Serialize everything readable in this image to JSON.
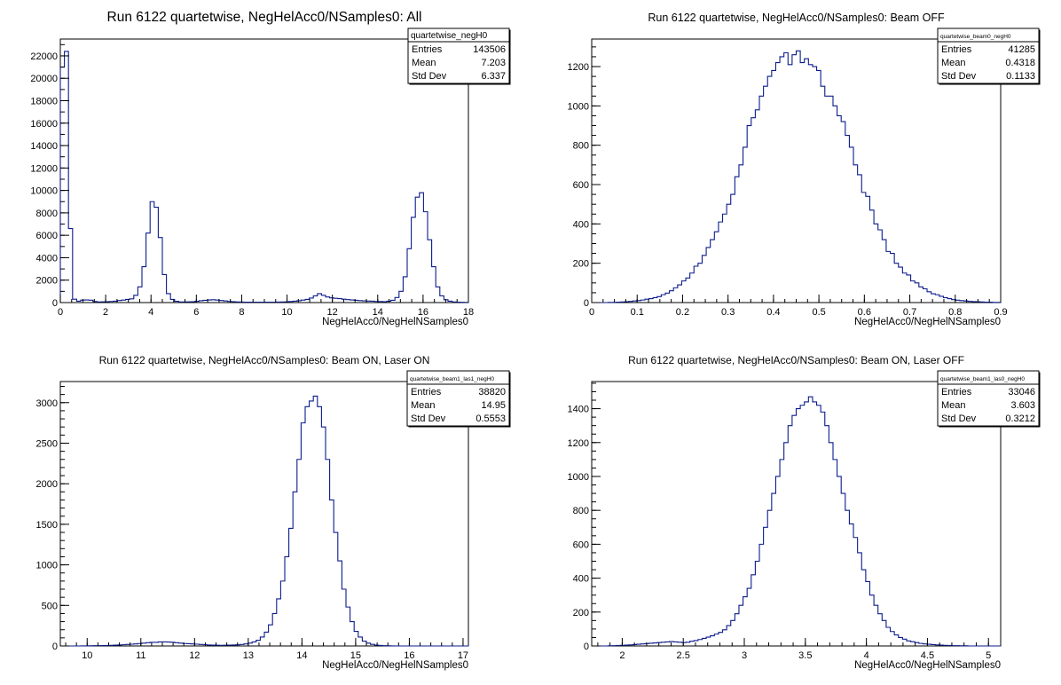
{
  "chart_data": [
    {
      "type": "histogram",
      "title": "Run 6122 quartetwise, NegHelAcc0/NSamples0: All",
      "xlabel": "NegHelAcc0/NegHelNSamples0",
      "xlim": [
        0,
        18
      ],
      "ylim": [
        0,
        23500
      ],
      "xticks": [
        0,
        2,
        4,
        6,
        8,
        10,
        12,
        14,
        16,
        18
      ],
      "yticks": [
        0,
        2000,
        4000,
        6000,
        8000,
        10000,
        12000,
        14000,
        16000,
        18000,
        20000,
        22000
      ],
      "stats": {
        "name": "quartetwise_negH0",
        "rows": [
          {
            "label": "Entries",
            "value": "143506"
          },
          {
            "label": "Mean",
            "value": "7.203"
          },
          {
            "label": "Std Dev",
            "value": "6.337"
          }
        ]
      },
      "bins": {
        "edges_start": 0,
        "bin_width": 0.18,
        "values": [
          21000,
          22400,
          6600,
          300,
          120,
          220,
          230,
          210,
          90,
          60,
          70,
          80,
          100,
          120,
          180,
          220,
          280,
          330,
          650,
          1400,
          3200,
          6200,
          9000,
          8500,
          5800,
          2500,
          800,
          280,
          110,
          60,
          60,
          70,
          80,
          110,
          160,
          200,
          230,
          250,
          220,
          180,
          140,
          100,
          80,
          60,
          50,
          40,
          40,
          40,
          40,
          40,
          40,
          40,
          40,
          50,
          60,
          70,
          90,
          120,
          160,
          220,
          280,
          400,
          600,
          800,
          650,
          500,
          420,
          380,
          350,
          300,
          260,
          230,
          200,
          170,
          150,
          130,
          120,
          100,
          90,
          80,
          120,
          200,
          450,
          1000,
          2300,
          4800,
          7600,
          9400,
          9800,
          8100,
          5600,
          3200,
          1400,
          600,
          250,
          120,
          60,
          40,
          30,
          20
        ]
      }
    },
    {
      "type": "histogram",
      "title": "Run 6122 quartetwise, NegHelAcc0/NSamples0: Beam OFF",
      "xlabel": "NegHelAcc0/NegHelNSamples0",
      "xlim": [
        0,
        0.9
      ],
      "ylim": [
        0,
        1340
      ],
      "xticks": [
        0,
        0.1,
        0.2,
        0.3,
        0.4,
        0.5,
        0.6,
        0.7,
        0.8,
        0.9
      ],
      "yticks": [
        0,
        200,
        400,
        600,
        800,
        1000,
        1200
      ],
      "stats": {
        "name": "quartetwise_beam0_negH0",
        "rows": [
          {
            "label": "Entries",
            "value": "41285"
          },
          {
            "label": "Mean",
            "value": "0.4318"
          },
          {
            "label": "Std Dev",
            "value": "0.1133"
          }
        ]
      },
      "bins": {
        "edges_start": 0,
        "bin_width": 0.009,
        "values": [
          0,
          0,
          0,
          0,
          1,
          1,
          2,
          3,
          4,
          6,
          8,
          10,
          13,
          17,
          20,
          25,
          30,
          40,
          48,
          60,
          75,
          90,
          110,
          125,
          150,
          185,
          200,
          240,
          280,
          320,
          360,
          410,
          450,
          500,
          550,
          640,
          700,
          790,
          900,
          940,
          980,
          1050,
          1100,
          1150,
          1180,
          1220,
          1250,
          1270,
          1210,
          1260,
          1280,
          1220,
          1240,
          1210,
          1200,
          1180,
          1100,
          1050,
          1050,
          1000,
          950,
          920,
          850,
          790,
          700,
          650,
          560,
          540,
          470,
          400,
          370,
          320,
          260,
          250,
          200,
          180,
          150,
          140,
          110,
          100,
          80,
          70,
          55,
          45,
          40,
          32,
          25,
          20,
          15,
          12,
          10,
          8,
          6,
          5,
          4,
          3,
          2,
          2,
          1,
          1
        ]
      }
    },
    {
      "type": "histogram",
      "title": "Run 6122 quartetwise, NegHelAcc0/NSamples0: Beam ON, Laser ON",
      "xlabel": "NegHelAcc0/NegHelNSamples0",
      "xlim": [
        9.5,
        17.1
      ],
      "ylim": [
        0,
        3260
      ],
      "xticks": [
        10,
        11,
        12,
        13,
        14,
        15,
        16,
        17
      ],
      "yticks": [
        0,
        500,
        1000,
        1500,
        2000,
        2500,
        3000
      ],
      "stats": {
        "name": "quartetwise_beam1_las1_negH0",
        "rows": [
          {
            "label": "Entries",
            "value": "38820"
          },
          {
            "label": "Mean",
            "value": "14.95"
          },
          {
            "label": "Std Dev",
            "value": "0.5553"
          }
        ]
      },
      "bins": {
        "edges_start": 9.5,
        "bin_width": 0.076,
        "values": [
          0,
          0,
          0,
          0,
          0,
          1,
          1,
          2,
          3,
          4,
          5,
          6,
          8,
          10,
          12,
          15,
          18,
          22,
          25,
          30,
          35,
          40,
          45,
          45,
          50,
          50,
          48,
          46,
          40,
          35,
          30,
          28,
          25,
          22,
          18,
          15,
          12,
          10,
          9,
          8,
          9,
          10,
          12,
          14,
          18,
          25,
          35,
          50,
          70,
          110,
          170,
          260,
          400,
          580,
          800,
          1100,
          1450,
          1900,
          2300,
          2750,
          2950,
          3020,
          3080,
          2950,
          2700,
          2300,
          1800,
          1400,
          1050,
          700,
          480,
          300,
          180,
          110,
          60,
          35,
          20,
          10,
          6,
          3,
          2,
          1,
          0,
          0,
          0,
          0,
          0,
          0,
          0,
          0,
          0,
          0,
          0,
          0,
          0,
          0,
          0,
          0,
          0,
          0
        ]
      }
    },
    {
      "type": "histogram",
      "title": "Run 6122 quartetwise, NegHelAcc0/NSamples0: Beam ON, Laser OFF",
      "xlabel": "NegHelAcc0/NegHelNSamples0",
      "xlim": [
        1.75,
        5.1
      ],
      "ylim": [
        0,
        1560
      ],
      "xticks": [
        2,
        2.5,
        3,
        3.5,
        4,
        4.5,
        5
      ],
      "yticks": [
        0,
        200,
        400,
        600,
        800,
        1000,
        1200,
        1400
      ],
      "stats": {
        "name": "quartetwise_beam1_las0_negH0",
        "rows": [
          {
            "label": "Entries",
            "value": "33046"
          },
          {
            "label": "Mean",
            "value": "3.603"
          },
          {
            "label": "Std Dev",
            "value": "0.3212"
          }
        ]
      },
      "bins": {
        "edges_start": 1.75,
        "bin_width": 0.0335,
        "values": [
          0,
          0,
          0,
          0,
          1,
          2,
          3,
          4,
          5,
          6,
          8,
          10,
          12,
          14,
          16,
          18,
          20,
          22,
          24,
          26,
          24,
          22,
          20,
          22,
          28,
          32,
          38,
          45,
          52,
          60,
          70,
          80,
          95,
          120,
          150,
          190,
          240,
          290,
          340,
          420,
          500,
          600,
          700,
          800,
          900,
          1000,
          1100,
          1200,
          1300,
          1360,
          1400,
          1420,
          1440,
          1470,
          1440,
          1420,
          1380,
          1300,
          1200,
          1100,
          1000,
          900,
          800,
          720,
          640,
          550,
          450,
          380,
          300,
          240,
          190,
          150,
          110,
          85,
          65,
          50,
          40,
          30,
          25,
          20,
          15,
          12,
          10,
          8,
          6,
          5,
          4,
          3,
          2,
          2,
          1,
          1,
          0,
          0,
          0,
          0,
          0,
          0,
          0,
          0
        ]
      }
    }
  ]
}
